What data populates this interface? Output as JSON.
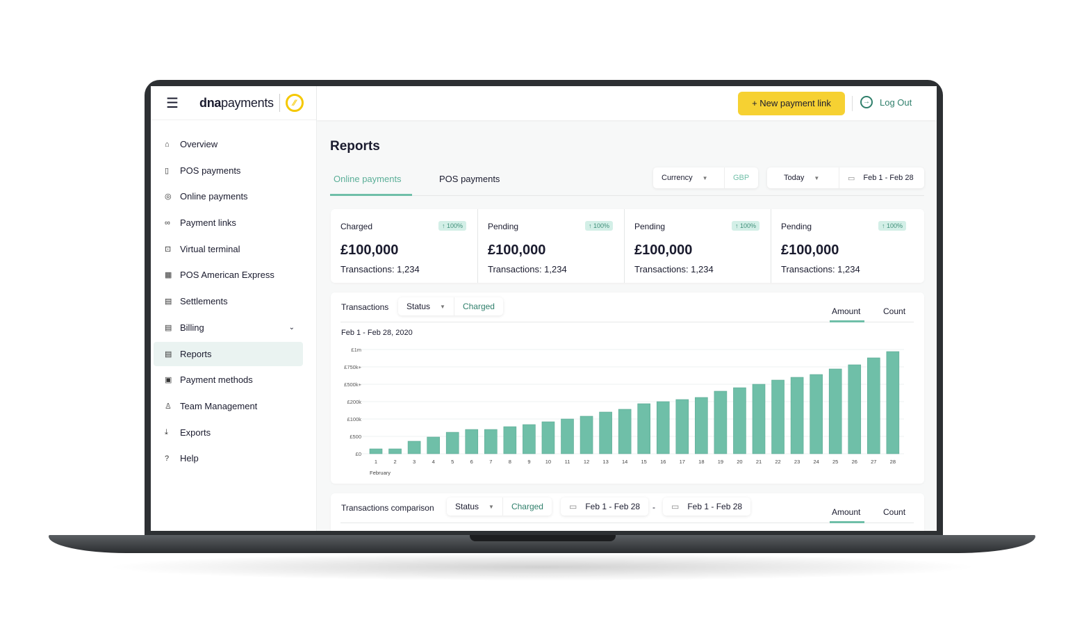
{
  "brand": {
    "name_bold": "dna",
    "name_light": "payments",
    "colors": {
      "accent": "#6fbfa8",
      "cta": "#f6d132",
      "logout": "#2f7f6b"
    }
  },
  "header": {
    "new_link": "+ New payment link",
    "logout": "Log Out"
  },
  "sidebar": {
    "items": [
      {
        "label": "Overview",
        "icon": "home-icon",
        "glyph": "⌂"
      },
      {
        "label": "POS payments",
        "icon": "pos-terminal-icon",
        "glyph": "▯"
      },
      {
        "label": "Online payments",
        "icon": "globe-icon",
        "glyph": "◎"
      },
      {
        "label": "Payment links",
        "icon": "link-icon",
        "glyph": "∞"
      },
      {
        "label": "Virtual terminal",
        "icon": "terminal-icon",
        "glyph": "⊡"
      },
      {
        "label": "POS American Express",
        "icon": "amex-icon",
        "glyph": "▦"
      },
      {
        "label": "Settlements",
        "icon": "document-icon",
        "glyph": "▤"
      },
      {
        "label": "Billing",
        "icon": "billing-icon",
        "glyph": "▤"
      },
      {
        "label": "Reports",
        "icon": "reports-icon",
        "glyph": "▤",
        "active": true
      },
      {
        "label": "Payment methods",
        "icon": "card-icon",
        "glyph": "▣"
      },
      {
        "label": "Team Management",
        "icon": "team-icon",
        "glyph": "♙"
      },
      {
        "label": "Exports",
        "icon": "download-icon",
        "glyph": "⤓"
      },
      {
        "label": "Help",
        "icon": "help-icon",
        "glyph": "?"
      }
    ]
  },
  "page": {
    "title": "Reports",
    "tabs": [
      "Online payments",
      "POS payments"
    ],
    "active_tab": 0,
    "currency": {
      "label": "Currency",
      "value": "GBP"
    },
    "period": {
      "label": "Today",
      "range": "Feb 1 - Feb 28"
    }
  },
  "stats": [
    {
      "label": "Charged",
      "change": "↑ 100%",
      "amount": "£100,000",
      "transactions": "Transactions: 1,234"
    },
    {
      "label": "Pending",
      "change": "↑ 100%",
      "amount": "£100,000",
      "transactions": "Transactions: 1,234"
    },
    {
      "label": "Pending",
      "change": "↑ 100%",
      "amount": "£100,000",
      "transactions": "Transactions: 1,234"
    },
    {
      "label": "Pending",
      "change": "↑ 100%",
      "amount": "£100,000",
      "transactions": "Transactions: 1,234"
    }
  ],
  "transactions": {
    "title": "Transactions",
    "status_label": "Status",
    "status_value": "Charged",
    "toggle": [
      "Amount",
      "Count"
    ],
    "active_toggle": 0,
    "range_title": "Feb 1 - Feb 28, 2020"
  },
  "comparison": {
    "title": "Transactions comparison",
    "status_label": "Status",
    "status_value": "Charged",
    "range_a": "Feb 1 - Feb 28",
    "sep": "-",
    "range_b": "Feb 1 - Feb 28",
    "toggle": [
      "Amount",
      "Count"
    ],
    "active_toggle": 0
  },
  "chart_data": {
    "type": "bar",
    "xlabel": "February",
    "categories": [
      "1",
      "2",
      "3",
      "4",
      "5",
      "6",
      "7",
      "8",
      "9",
      "10",
      "11",
      "12",
      "13",
      "14",
      "15",
      "16",
      "17",
      "18",
      "19",
      "20",
      "21",
      "22",
      "23",
      "24",
      "25",
      "26",
      "27",
      "28"
    ],
    "y_ticks": [
      "£0",
      "£500",
      "£100k",
      "£200k",
      "£500k+",
      "£750k+",
      "£1m"
    ],
    "y_tick_values": [
      0,
      500,
      100000,
      200000,
      500000,
      750000,
      1000000
    ],
    "y_scale": "categorical-nonlinear",
    "values": [
      140,
      140,
      360,
      480,
      24000,
      40000,
      40000,
      56000,
      68000,
      84000,
      100000,
      116000,
      140000,
      156000,
      188000,
      200000,
      236000,
      272000,
      380000,
      440000,
      500000,
      560000,
      600000,
      640000,
      720000,
      780000,
      880000,
      970000
    ],
    "grid": true,
    "bar_color": "#6fbfa8"
  }
}
